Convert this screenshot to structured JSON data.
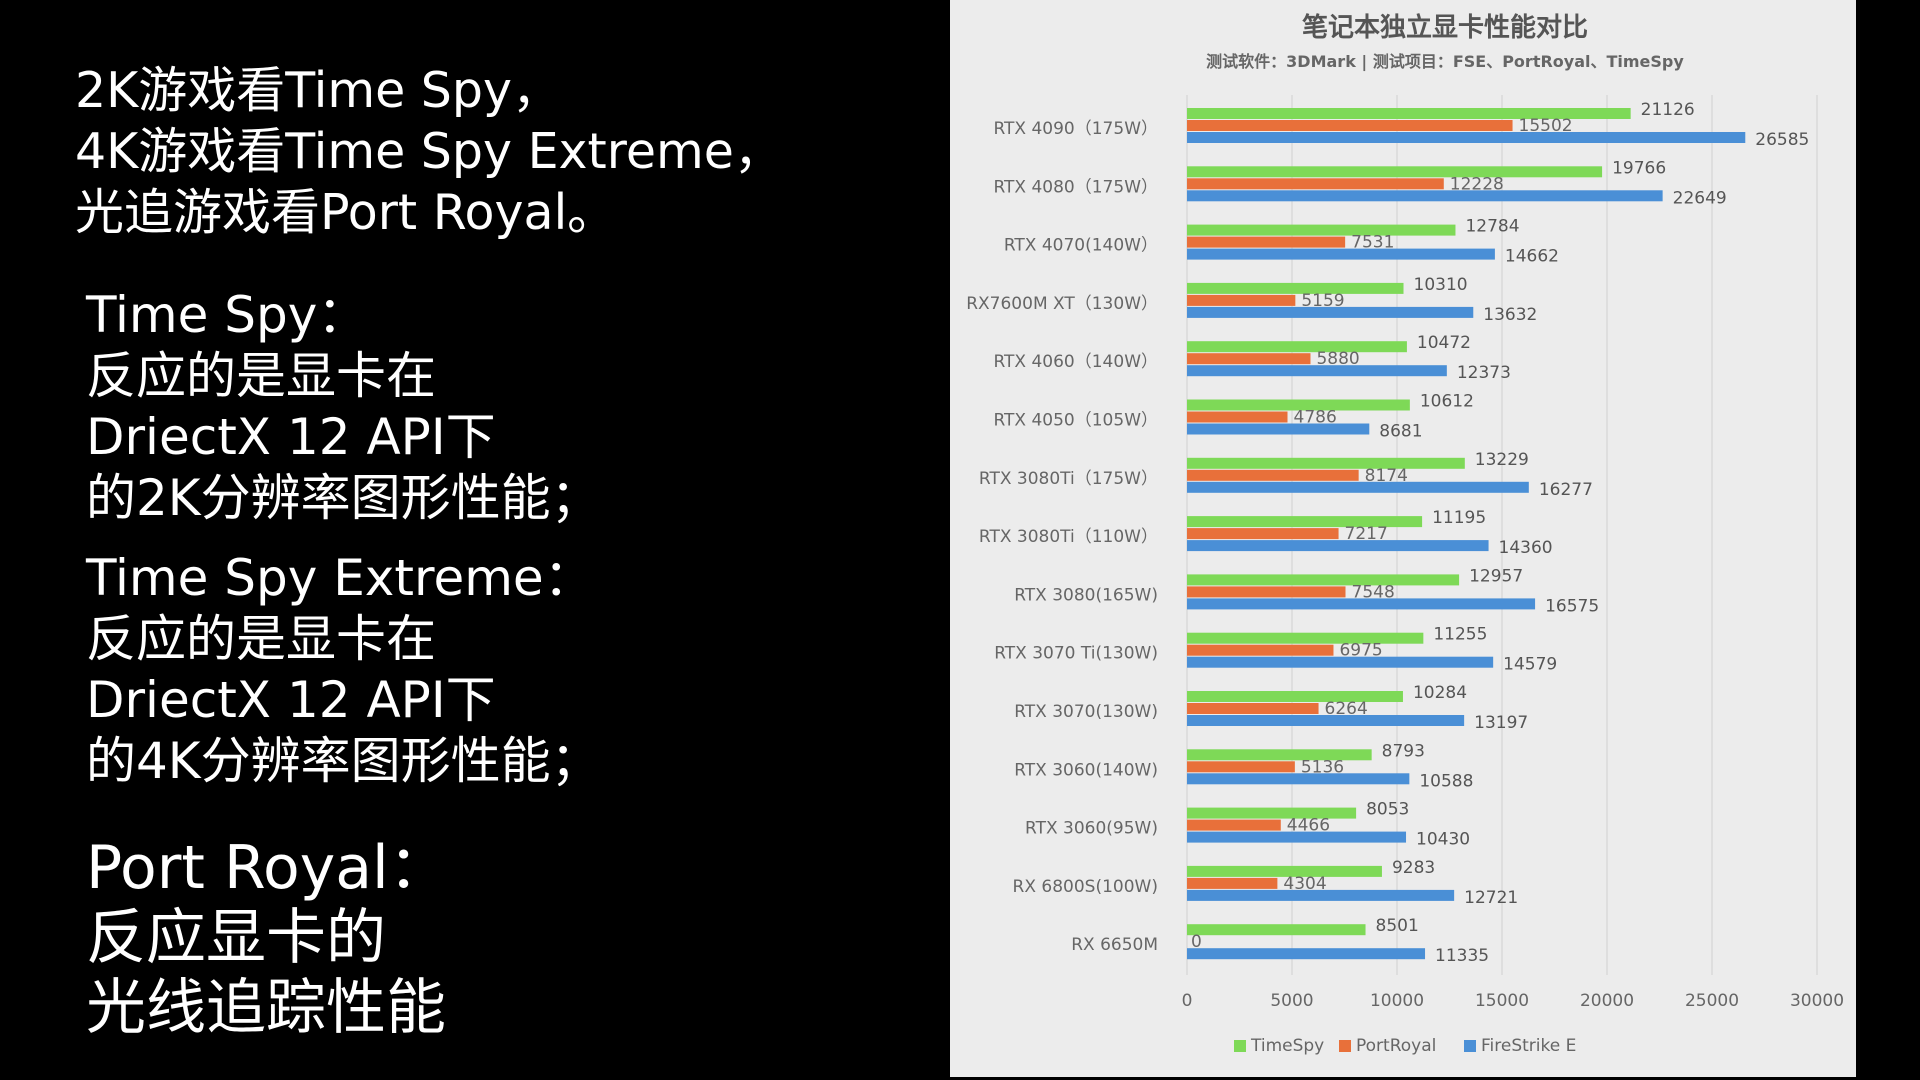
{
  "left_text": {
    "intro": "2K游戏看Time Spy，\n4K游戏看Time Spy Extreme，\n光追游戏看Port Royal。",
    "time_spy": "Time Spy：\n反应的是显卡在\nDriectX 12 API下\n的2K分辨率图形性能；",
    "time_spy_extreme": "Time Spy Extreme：\n反应的是显卡在\nDriectX 12 API下\n的4K分辨率图形性能；",
    "port_royal": "Port Royal：\n反应显卡的\n光线追踪性能"
  },
  "chart_data": {
    "type": "bar",
    "orientation": "horizontal",
    "title": "笔记本独立显卡性能对比",
    "subtitle": "测试软件：3DMark | 测试项目：FSE、PortRoyal、TimeSpy",
    "categories": [
      "RTX 4090（175W）",
      "RTX 4080（175W）",
      "RTX 4070(140W）",
      "RX7600M XT（130W）",
      "RTX 4060（140W）",
      "RTX 4050（105W）",
      "RTX 3080Ti（175W）",
      "RTX 3080Ti（110W）",
      "RTX 3080(165W)",
      "RTX 3070 Ti(130W)",
      "RTX 3070(130W)",
      "RTX 3060(140W)",
      "RTX 3060(95W)",
      "RX 6800S(100W)",
      "RX 6650M"
    ],
    "series": [
      {
        "name": "TimeSpy",
        "color": "#7ed957",
        "values": [
          21126,
          19766,
          12784,
          10310,
          10472,
          10612,
          13229,
          11195,
          12957,
          11255,
          10284,
          8793,
          8053,
          9283,
          8501
        ]
      },
      {
        "name": "PortRoyal",
        "color": "#e8703a",
        "values": [
          15502,
          12228,
          7531,
          5159,
          5880,
          4786,
          8174,
          7217,
          7548,
          6975,
          6264,
          5136,
          4466,
          4304,
          0
        ]
      },
      {
        "name": "FireStrike E",
        "color": "#4a8fd6",
        "values": [
          26585,
          22649,
          14662,
          13632,
          12373,
          8681,
          16277,
          14360,
          16575,
          14579,
          13197,
          10588,
          10430,
          12721,
          11335
        ]
      }
    ],
    "xlim": [
      0,
      30000
    ],
    "xticks": [
      0,
      5000,
      10000,
      15000,
      20000,
      25000,
      30000
    ],
    "grid": true,
    "legend_position": "bottom"
  }
}
